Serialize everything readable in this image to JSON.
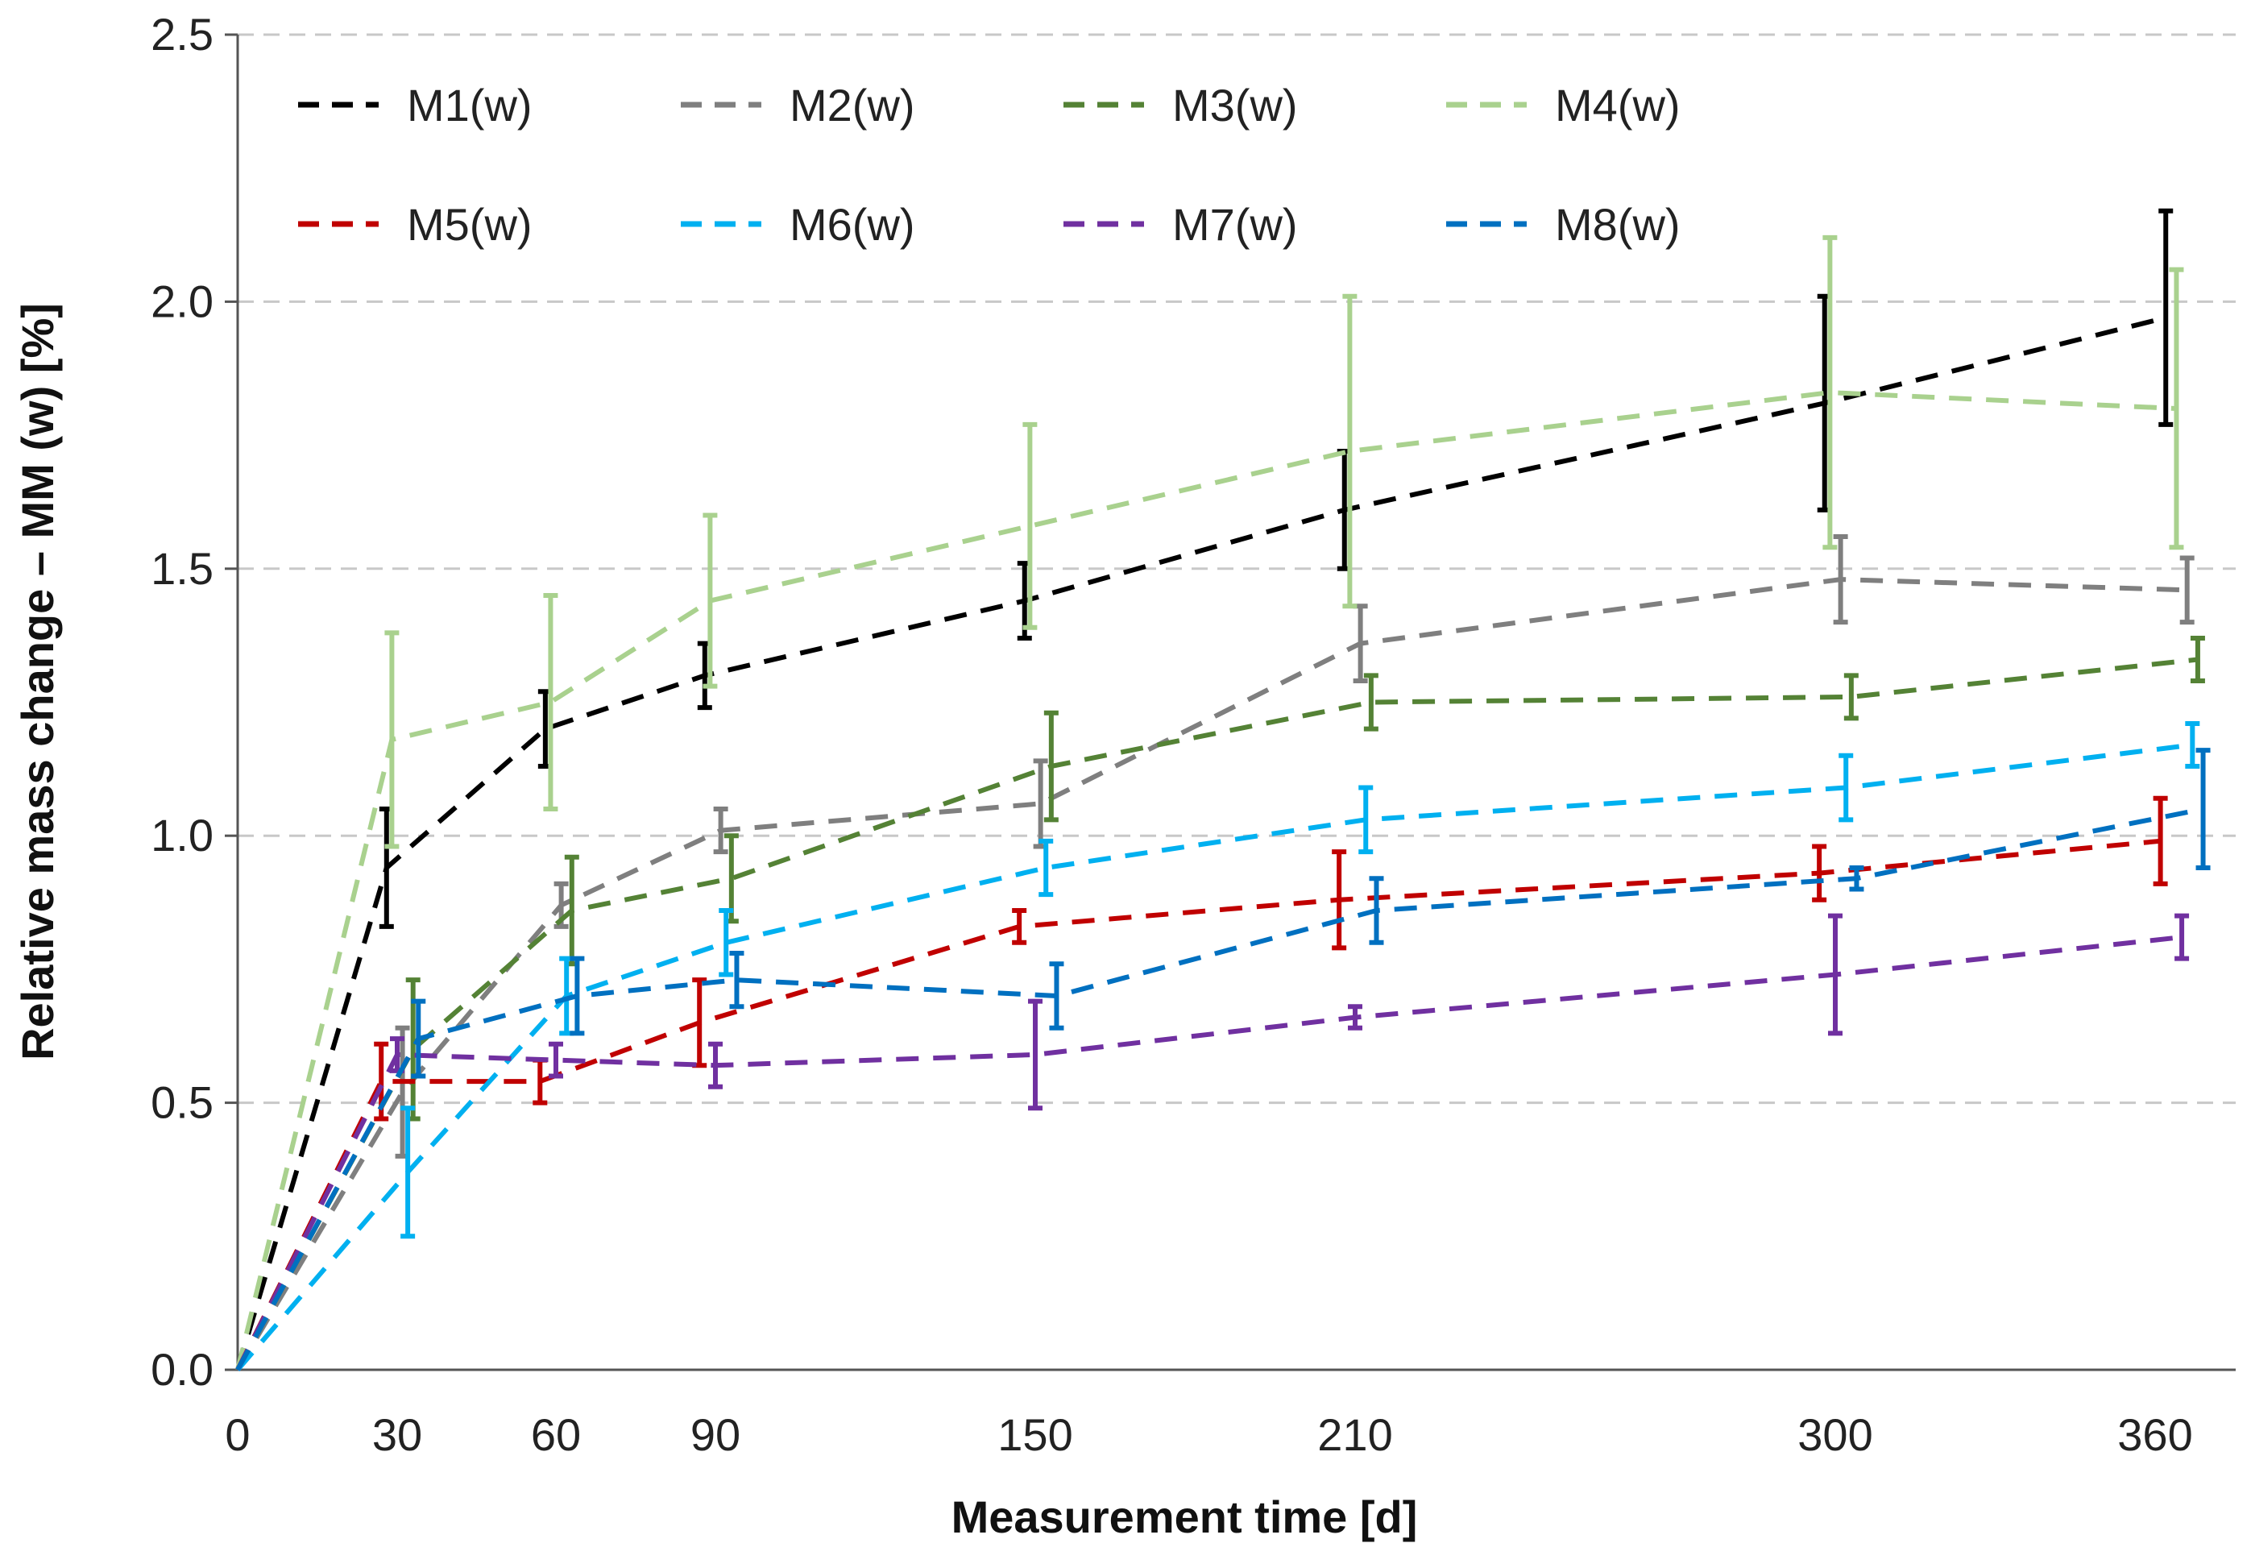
{
  "chart_data": {
    "type": "line",
    "xlabel": "Measurement time [d]",
    "ylabel": "Relative mass change – MM (w) [%]",
    "xlim": [
      0,
      360
    ],
    "ylim": [
      0,
      2.5
    ],
    "x_ticks": [
      "0",
      "30",
      "60",
      "90",
      "150",
      "210",
      "300",
      "360"
    ],
    "y_ticks": [
      "0.0",
      "0.5",
      "1.0",
      "1.5",
      "2.0",
      "2.5"
    ],
    "grid": "horizontal dashed",
    "legend_position": "top-left",
    "x": [
      0,
      30,
      60,
      90,
      150,
      210,
      300,
      360
    ],
    "series": [
      {
        "name": "M1(w)",
        "color": "#000000",
        "x": [
          0,
          28,
          58,
          88,
          148,
          208,
          298,
          362
        ],
        "values": [
          0,
          0.94,
          1.2,
          1.3,
          1.44,
          1.61,
          1.81,
          1.97
        ],
        "errors": [
          0,
          0.11,
          0.07,
          0.06,
          0.07,
          0.11,
          0.2,
          0.2
        ]
      },
      {
        "name": "M2(w)",
        "color": "#7f7f7f",
        "x": [
          0,
          31,
          61,
          91,
          151,
          211,
          301,
          366
        ],
        "values": [
          0,
          0.52,
          0.87,
          1.01,
          1.06,
          1.36,
          1.48,
          1.46
        ],
        "errors": [
          0,
          0.12,
          0.04,
          0.04,
          0.08,
          0.07,
          0.08,
          0.06
        ]
      },
      {
        "name": "M3(w)",
        "color": "#548235",
        "x": [
          0,
          33,
          63,
          93,
          153,
          213,
          303,
          368
        ],
        "values": [
          0,
          0.6,
          0.86,
          0.92,
          1.13,
          1.25,
          1.26,
          1.33
        ],
        "errors": [
          0,
          0.13,
          0.1,
          0.08,
          0.1,
          0.05,
          0.04,
          0.04
        ]
      },
      {
        "name": "M4(w)",
        "color": "#a9d18e",
        "x": [
          0,
          29,
          59,
          89,
          149,
          209,
          299,
          364
        ],
        "values": [
          0,
          1.18,
          1.25,
          1.44,
          1.58,
          1.72,
          1.83,
          1.8
        ],
        "errors": [
          0,
          0.2,
          0.2,
          0.16,
          0.19,
          0.29,
          0.29,
          0.26
        ]
      },
      {
        "name": "M5(w)",
        "color": "#c00000",
        "x": [
          0,
          27,
          57,
          87,
          147,
          207,
          297,
          361
        ],
        "values": [
          0,
          0.54,
          0.54,
          0.65,
          0.83,
          0.88,
          0.93,
          0.99
        ],
        "errors": [
          0,
          0.07,
          0.04,
          0.08,
          0.03,
          0.09,
          0.05,
          0.08
        ]
      },
      {
        "name": "M6(w)",
        "color": "#00b0f0",
        "x": [
          0,
          32,
          62,
          92,
          152,
          212,
          302,
          367
        ],
        "values": [
          0,
          0.37,
          0.7,
          0.8,
          0.94,
          1.03,
          1.09,
          1.17
        ],
        "errors": [
          0,
          0.12,
          0.07,
          0.06,
          0.05,
          0.06,
          0.06,
          0.04
        ]
      },
      {
        "name": "M7(w)",
        "color": "#7030a0",
        "x": [
          0,
          30,
          60,
          90,
          150,
          210,
          300,
          365
        ],
        "values": [
          0,
          0.59,
          0.58,
          0.57,
          0.59,
          0.66,
          0.74,
          0.81
        ],
        "errors": [
          0,
          0.03,
          0.03,
          0.04,
          0.1,
          0.02,
          0.11,
          0.04
        ]
      },
      {
        "name": "M8(w)",
        "color": "#0070c0",
        "x": [
          0,
          34,
          64,
          94,
          154,
          214,
          304,
          369
        ],
        "values": [
          0,
          0.62,
          0.7,
          0.73,
          0.7,
          0.86,
          0.92,
          1.05
        ],
        "errors": [
          0,
          0.07,
          0.07,
          0.05,
          0.06,
          0.06,
          0.02,
          0.11
        ]
      }
    ]
  }
}
